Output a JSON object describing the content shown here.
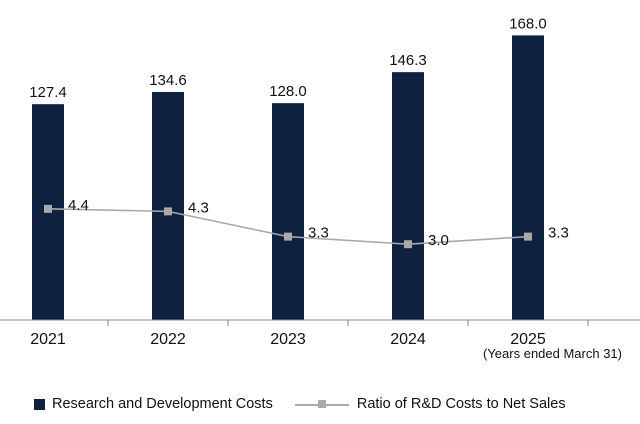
{
  "chart_data": {
    "type": "bar",
    "categories": [
      "2021",
      "2022",
      "2023",
      "2024",
      "2025"
    ],
    "series": [
      {
        "name": "Research and Development Costs",
        "type": "bar",
        "values": [
          127.4,
          134.6,
          128.0,
          146.3,
          168.0
        ],
        "value_labels": [
          "127.4",
          "134.6",
          "128.0",
          "146.3",
          "168.0"
        ],
        "color": "#0e2240"
      },
      {
        "name": "Ratio of R&D Costs to Net Sales",
        "type": "line",
        "values": [
          4.4,
          4.3,
          3.3,
          3.0,
          3.3
        ],
        "value_labels": [
          "4.4",
          "4.3",
          "3.3",
          "3.0",
          "3.3"
        ],
        "color": "#a9a9a9",
        "marker": "square"
      }
    ],
    "ylim": [
      0,
      170
    ],
    "secondary_ylim": [
      0,
      11.4
    ],
    "x_note": "(Years ended March 31)",
    "grid": false,
    "legend_position": "bottom",
    "axis_color": "#888888"
  }
}
